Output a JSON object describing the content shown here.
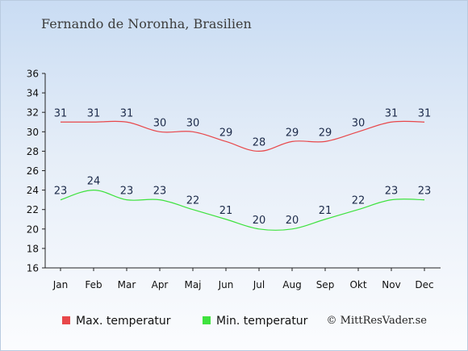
{
  "chart_data": {
    "type": "line",
    "title": "Fernando de Noronha, Brasilien",
    "categories": [
      "Jan",
      "Feb",
      "Mar",
      "Apr",
      "Maj",
      "Jun",
      "Jul",
      "Aug",
      "Sep",
      "Okt",
      "Nov",
      "Dec"
    ],
    "series": [
      {
        "name": "Max. temperatur",
        "color": "#e8474a",
        "values": [
          31,
          31,
          31,
          30,
          30,
          29,
          28,
          29,
          29,
          30,
          31,
          31
        ]
      },
      {
        "name": "Min. temperatur",
        "color": "#3ee23e",
        "values": [
          23,
          24,
          23,
          23,
          22,
          21,
          20,
          20,
          21,
          22,
          23,
          23
        ]
      }
    ],
    "ylim": [
      16,
      36
    ],
    "yticks": [
      16,
      18,
      20,
      22,
      24,
      26,
      28,
      30,
      32,
      34,
      36
    ],
    "grid": false,
    "legend_position": "bottom-left"
  },
  "credit": "© MittResVader.se"
}
